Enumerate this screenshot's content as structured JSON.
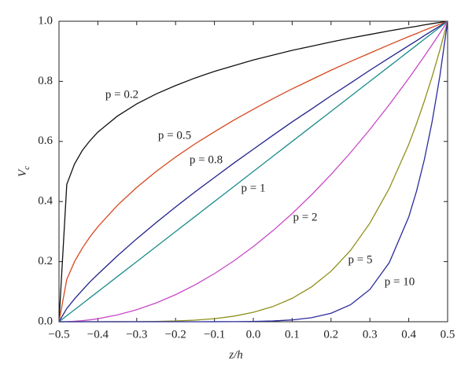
{
  "chart_data": {
    "type": "line",
    "xlabel": "z/h",
    "ylabel": {
      "text": "V",
      "subscript": "c"
    },
    "x": [
      -0.5,
      -0.48,
      -0.46,
      -0.44,
      -0.42,
      -0.4,
      -0.35,
      -0.3,
      -0.25,
      -0.2,
      -0.15,
      -0.1,
      -0.05,
      0,
      0.05,
      0.1,
      0.15,
      0.2,
      0.25,
      0.3,
      0.35,
      0.4,
      0.42,
      0.44,
      0.46,
      0.48,
      0.5
    ],
    "series": [
      {
        "name": "p = 0.2",
        "color": "#111111",
        "values": [
          0,
          0.457,
          0.525,
          0.57,
          0.603,
          0.631,
          0.684,
          0.725,
          0.758,
          0.786,
          0.811,
          0.833,
          0.852,
          0.871,
          0.887,
          0.903,
          0.917,
          0.931,
          0.944,
          0.956,
          0.968,
          0.979,
          0.983,
          0.988,
          0.992,
          0.996,
          1
        ]
      },
      {
        "name": "p = 0.5",
        "color": "#d8471c",
        "values": [
          0,
          0.141,
          0.2,
          0.245,
          0.283,
          0.316,
          0.387,
          0.447,
          0.5,
          0.548,
          0.592,
          0.632,
          0.671,
          0.707,
          0.742,
          0.775,
          0.806,
          0.837,
          0.866,
          0.894,
          0.922,
          0.949,
          0.959,
          0.97,
          0.98,
          0.99,
          1
        ]
      },
      {
        "name": "p = 0.8",
        "color": "#22228c",
        "values": [
          0,
          0.044,
          0.076,
          0.105,
          0.133,
          0.158,
          0.219,
          0.276,
          0.33,
          0.382,
          0.432,
          0.48,
          0.528,
          0.574,
          0.62,
          0.665,
          0.708,
          0.752,
          0.794,
          0.837,
          0.878,
          0.919,
          0.935,
          0.952,
          0.968,
          0.984,
          1
        ]
      },
      {
        "name": "p = 1",
        "color": "#1a8c8c",
        "values": [
          0,
          0.02,
          0.04,
          0.06,
          0.08,
          0.1,
          0.15,
          0.2,
          0.25,
          0.3,
          0.35,
          0.4,
          0.45,
          0.5,
          0.55,
          0.6,
          0.65,
          0.7,
          0.75,
          0.8,
          0.85,
          0.9,
          0.92,
          0.94,
          0.96,
          0.98,
          1
        ]
      },
      {
        "name": "p = 2",
        "color": "#c848c8",
        "values": [
          0,
          0.0004,
          0.0016,
          0.0036,
          0.0064,
          0.01,
          0.0225,
          0.04,
          0.0625,
          0.09,
          0.1225,
          0.16,
          0.2025,
          0.25,
          0.3025,
          0.36,
          0.4225,
          0.49,
          0.5625,
          0.64,
          0.7225,
          0.81,
          0.8464,
          0.8836,
          0.9216,
          0.9604,
          1
        ]
      },
      {
        "name": "p = 5",
        "color": "#8f8f1c",
        "values": [
          0,
          0,
          0,
          0,
          0,
          1e-05,
          0.0001,
          0.0003,
          0.001,
          0.0024,
          0.0053,
          0.0102,
          0.0185,
          0.0313,
          0.0503,
          0.0778,
          0.116,
          0.168,
          0.237,
          0.328,
          0.444,
          0.59,
          0.659,
          0.734,
          0.815,
          0.904,
          1
        ]
      },
      {
        "name": "p = 10",
        "color": "#2b2b9c",
        "values": [
          0,
          0,
          0,
          0,
          0,
          0,
          0,
          0,
          0,
          0,
          0,
          0.0001,
          0.0003,
          0.001,
          0.0025,
          0.006,
          0.0135,
          0.0282,
          0.0563,
          0.1074,
          0.1969,
          0.3487,
          0.4344,
          0.5386,
          0.6648,
          0.8171,
          1
        ]
      }
    ],
    "xlim": [
      -0.5,
      0.5
    ],
    "xticks": [
      {
        "value": -0.5,
        "label": "−0.5"
      },
      {
        "value": -0.4,
        "label": "−0.4"
      },
      {
        "value": -0.3,
        "label": "−0.3"
      },
      {
        "value": -0.2,
        "label": "−0.2"
      },
      {
        "value": -0.1,
        "label": "−0.1"
      },
      {
        "value": 0,
        "label": "0.0"
      },
      0.1,
      0.2,
      0.3,
      0.4,
      0.5
    ],
    "ylim": [
      0,
      1
    ],
    "yticks": [
      {
        "value": 0,
        "label": "0.0"
      },
      0.2,
      0.4,
      0.6,
      0.8,
      {
        "value": 1,
        "label": "1.0"
      }
    ],
    "grid": false
  }
}
